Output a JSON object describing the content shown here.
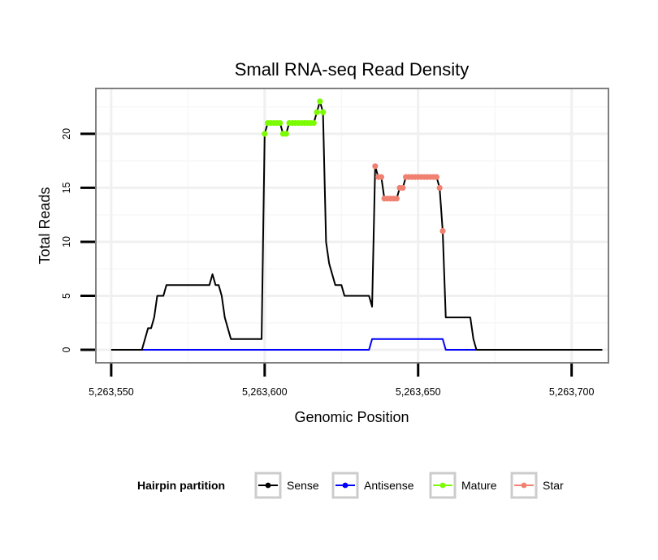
{
  "chart_data": {
    "type": "line",
    "title": "Small RNA-seq Read Density",
    "xlabel": "Genomic Position",
    "ylabel": "Total Reads",
    "xlim": [
      5263545,
      5263712
    ],
    "ylim": [
      -1.2,
      24.2
    ],
    "x_ticks": [
      5263550,
      5263600,
      5263650,
      5263700
    ],
    "x_tick_labels": [
      "5,263,550",
      "5,263,600",
      "5,263,650",
      "5,263,700"
    ],
    "y_ticks": [
      0,
      5,
      10,
      15,
      20
    ],
    "y_tick_labels": [
      "0",
      "5",
      "10",
      "15",
      "20"
    ],
    "grid": true,
    "legend": {
      "title": "Hairpin partition",
      "position": "bottom",
      "entries": [
        {
          "label": "Sense",
          "color": "#000000"
        },
        {
          "label": "Antisense",
          "color": "#0000ff"
        },
        {
          "label": "Mature",
          "color": "#7cfc00"
        },
        {
          "label": "Star",
          "color": "#f08070"
        }
      ]
    },
    "series": [
      {
        "name": "Sense",
        "color": "#000000",
        "style": "line",
        "points": [
          [
            5263550,
            0
          ],
          [
            5263560,
            0
          ],
          [
            5263561,
            1
          ],
          [
            5263562,
            2
          ],
          [
            5263563,
            2
          ],
          [
            5263564,
            3
          ],
          [
            5263565,
            5
          ],
          [
            5263566,
            5
          ],
          [
            5263567,
            5
          ],
          [
            5263568,
            6
          ],
          [
            5263569,
            6
          ],
          [
            5263570,
            6
          ],
          [
            5263571,
            6
          ],
          [
            5263572,
            6
          ],
          [
            5263573,
            6
          ],
          [
            5263574,
            6
          ],
          [
            5263575,
            6
          ],
          [
            5263576,
            6
          ],
          [
            5263577,
            6
          ],
          [
            5263578,
            6
          ],
          [
            5263579,
            6
          ],
          [
            5263580,
            6
          ],
          [
            5263581,
            6
          ],
          [
            5263582,
            6
          ],
          [
            5263583,
            7
          ],
          [
            5263584,
            6
          ],
          [
            5263585,
            6
          ],
          [
            5263586,
            5
          ],
          [
            5263587,
            3
          ],
          [
            5263588,
            2
          ],
          [
            5263589,
            1
          ],
          [
            5263590,
            1
          ],
          [
            5263591,
            1
          ],
          [
            5263592,
            1
          ],
          [
            5263593,
            1
          ],
          [
            5263594,
            1
          ],
          [
            5263595,
            1
          ],
          [
            5263596,
            1
          ],
          [
            5263597,
            1
          ],
          [
            5263598,
            1
          ],
          [
            5263599,
            1
          ],
          [
            5263600,
            20
          ],
          [
            5263601,
            21
          ],
          [
            5263602,
            21
          ],
          [
            5263603,
            21
          ],
          [
            5263604,
            21
          ],
          [
            5263605,
            21
          ],
          [
            5263606,
            20
          ],
          [
            5263607,
            20
          ],
          [
            5263608,
            21
          ],
          [
            5263609,
            21
          ],
          [
            5263610,
            21
          ],
          [
            5263611,
            21
          ],
          [
            5263612,
            21
          ],
          [
            5263613,
            21
          ],
          [
            5263614,
            21
          ],
          [
            5263615,
            21
          ],
          [
            5263616,
            21
          ],
          [
            5263617,
            22
          ],
          [
            5263618,
            23
          ],
          [
            5263619,
            22
          ],
          [
            5263620,
            10
          ],
          [
            5263621,
            8
          ],
          [
            5263622,
            7
          ],
          [
            5263623,
            6
          ],
          [
            5263624,
            6
          ],
          [
            5263625,
            6
          ],
          [
            5263626,
            5
          ],
          [
            5263627,
            5
          ],
          [
            5263628,
            5
          ],
          [
            5263629,
            5
          ],
          [
            5263630,
            5
          ],
          [
            5263631,
            5
          ],
          [
            5263632,
            5
          ],
          [
            5263633,
            5
          ],
          [
            5263634,
            5
          ],
          [
            5263635,
            4
          ],
          [
            5263636,
            17
          ],
          [
            5263637,
            16
          ],
          [
            5263638,
            16
          ],
          [
            5263639,
            14
          ],
          [
            5263640,
            14
          ],
          [
            5263641,
            14
          ],
          [
            5263642,
            14
          ],
          [
            5263643,
            14
          ],
          [
            5263644,
            15
          ],
          [
            5263645,
            15
          ],
          [
            5263646,
            16
          ],
          [
            5263647,
            16
          ],
          [
            5263648,
            16
          ],
          [
            5263649,
            16
          ],
          [
            5263650,
            16
          ],
          [
            5263651,
            16
          ],
          [
            5263652,
            16
          ],
          [
            5263653,
            16
          ],
          [
            5263654,
            16
          ],
          [
            5263655,
            16
          ],
          [
            5263656,
            16
          ],
          [
            5263657,
            15
          ],
          [
            5263658,
            11
          ],
          [
            5263659,
            3
          ],
          [
            5263660,
            3
          ],
          [
            5263661,
            3
          ],
          [
            5263662,
            3
          ],
          [
            5263663,
            3
          ],
          [
            5263664,
            3
          ],
          [
            5263665,
            3
          ],
          [
            5263666,
            3
          ],
          [
            5263667,
            3
          ],
          [
            5263668,
            1
          ],
          [
            5263669,
            0
          ],
          [
            5263670,
            0
          ],
          [
            5263710,
            0
          ]
        ]
      },
      {
        "name": "Antisense",
        "color": "#0000ff",
        "style": "line",
        "points": [
          [
            5263550,
            0
          ],
          [
            5263634,
            0
          ],
          [
            5263635,
            1
          ],
          [
            5263658,
            1
          ],
          [
            5263659,
            0
          ],
          [
            5263710,
            0
          ]
        ]
      },
      {
        "name": "Mature",
        "color": "#7cfc00",
        "style": "points",
        "points": [
          [
            5263600,
            20
          ],
          [
            5263601,
            21
          ],
          [
            5263602,
            21
          ],
          [
            5263603,
            21
          ],
          [
            5263604,
            21
          ],
          [
            5263605,
            21
          ],
          [
            5263606,
            20
          ],
          [
            5263607,
            20
          ],
          [
            5263608,
            21
          ],
          [
            5263609,
            21
          ],
          [
            5263610,
            21
          ],
          [
            5263611,
            21
          ],
          [
            5263612,
            21
          ],
          [
            5263613,
            21
          ],
          [
            5263614,
            21
          ],
          [
            5263615,
            21
          ],
          [
            5263616,
            21
          ],
          [
            5263617,
            22
          ],
          [
            5263618,
            23
          ],
          [
            5263619,
            22
          ]
        ]
      },
      {
        "name": "Star",
        "color": "#f08070",
        "style": "points",
        "points": [
          [
            5263636,
            17
          ],
          [
            5263637,
            16
          ],
          [
            5263638,
            16
          ],
          [
            5263639,
            14
          ],
          [
            5263640,
            14
          ],
          [
            5263641,
            14
          ],
          [
            5263642,
            14
          ],
          [
            5263643,
            14
          ],
          [
            5263644,
            15
          ],
          [
            5263645,
            15
          ],
          [
            5263646,
            16
          ],
          [
            5263647,
            16
          ],
          [
            5263648,
            16
          ],
          [
            5263649,
            16
          ],
          [
            5263650,
            16
          ],
          [
            5263651,
            16
          ],
          [
            5263652,
            16
          ],
          [
            5263653,
            16
          ],
          [
            5263654,
            16
          ],
          [
            5263655,
            16
          ],
          [
            5263656,
            16
          ],
          [
            5263657,
            15
          ],
          [
            5263658,
            11
          ]
        ]
      }
    ]
  }
}
